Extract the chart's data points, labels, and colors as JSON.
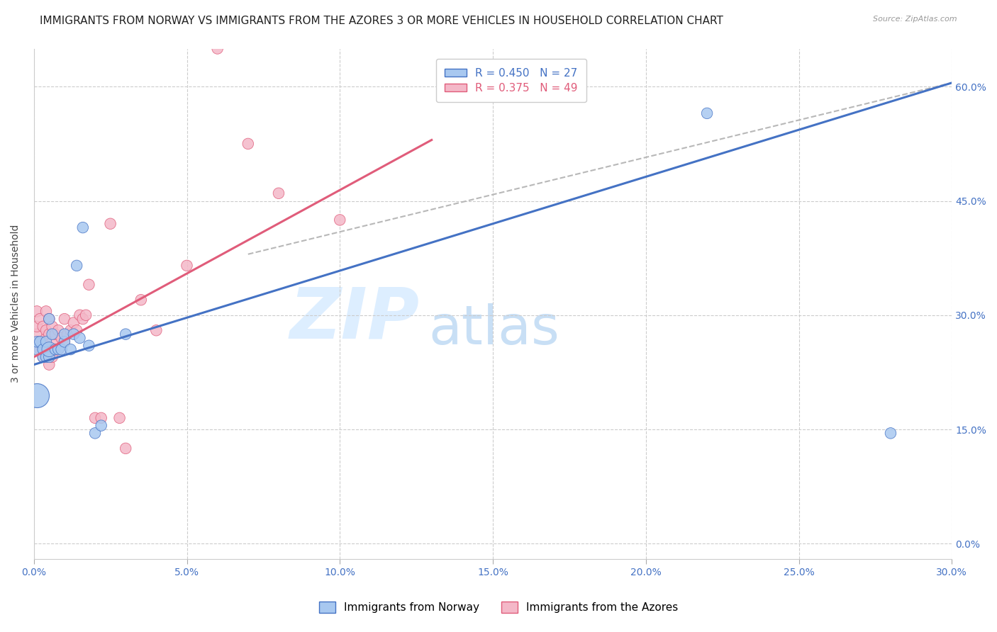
{
  "title": "IMMIGRANTS FROM NORWAY VS IMMIGRANTS FROM THE AZORES 3 OR MORE VEHICLES IN HOUSEHOLD CORRELATION CHART",
  "source": "Source: ZipAtlas.com",
  "ylabel_left": "3 or more Vehicles in Household",
  "legend_norway": "Immigrants from Norway",
  "legend_azores": "Immigrants from the Azores",
  "R_norway": 0.45,
  "N_norway": 27,
  "R_azores": 0.375,
  "N_azores": 49,
  "xlim": [
    0.0,
    0.3
  ],
  "ylim": [
    -0.02,
    0.65
  ],
  "yticks": [
    0.0,
    0.15,
    0.3,
    0.45,
    0.6
  ],
  "xticks": [
    0.0,
    0.05,
    0.1,
    0.15,
    0.2,
    0.25,
    0.3
  ],
  "color_norway": "#a8c8f0",
  "color_norway_line": "#4472C4",
  "color_azores": "#f4b8c8",
  "color_azores_line": "#E05C7A",
  "color_diag": "#b8b8b8",
  "norway_x": [
    0.001,
    0.001,
    0.002,
    0.003,
    0.003,
    0.004,
    0.004,
    0.005,
    0.005,
    0.005,
    0.006,
    0.007,
    0.008,
    0.009,
    0.01,
    0.01,
    0.012,
    0.013,
    0.014,
    0.015,
    0.016,
    0.018,
    0.02,
    0.022,
    0.03,
    0.22,
    0.28
  ],
  "norway_y": [
    0.255,
    0.265,
    0.265,
    0.245,
    0.255,
    0.245,
    0.265,
    0.245,
    0.255,
    0.295,
    0.275,
    0.255,
    0.255,
    0.255,
    0.265,
    0.275,
    0.255,
    0.275,
    0.365,
    0.27,
    0.415,
    0.26,
    0.145,
    0.155,
    0.275,
    0.565,
    0.145
  ],
  "norway_size": [
    50,
    50,
    50,
    50,
    50,
    50,
    50,
    50,
    90,
    50,
    50,
    50,
    50,
    50,
    50,
    50,
    50,
    50,
    50,
    50,
    50,
    50,
    50,
    50,
    50,
    50,
    50
  ],
  "norway_large": [
    false,
    false,
    false,
    false,
    false,
    false,
    false,
    false,
    false,
    false,
    false,
    false,
    false,
    false,
    false,
    false,
    false,
    false,
    false,
    false,
    false,
    false,
    false,
    false,
    false,
    false,
    false
  ],
  "azores_x": [
    0.001,
    0.001,
    0.001,
    0.002,
    0.002,
    0.002,
    0.003,
    0.003,
    0.003,
    0.003,
    0.004,
    0.004,
    0.004,
    0.004,
    0.004,
    0.005,
    0.005,
    0.005,
    0.005,
    0.006,
    0.006,
    0.006,
    0.007,
    0.007,
    0.008,
    0.008,
    0.009,
    0.01,
    0.01,
    0.011,
    0.012,
    0.013,
    0.014,
    0.015,
    0.016,
    0.017,
    0.018,
    0.02,
    0.022,
    0.025,
    0.028,
    0.03,
    0.035,
    0.04,
    0.05,
    0.06,
    0.07,
    0.08,
    0.1
  ],
  "azores_y": [
    0.275,
    0.285,
    0.305,
    0.255,
    0.265,
    0.295,
    0.245,
    0.255,
    0.265,
    0.285,
    0.245,
    0.255,
    0.27,
    0.28,
    0.305,
    0.235,
    0.255,
    0.275,
    0.295,
    0.245,
    0.265,
    0.285,
    0.255,
    0.275,
    0.255,
    0.28,
    0.27,
    0.265,
    0.295,
    0.275,
    0.28,
    0.29,
    0.28,
    0.3,
    0.295,
    0.3,
    0.34,
    0.165,
    0.165,
    0.42,
    0.165,
    0.125,
    0.32,
    0.28,
    0.365,
    0.65,
    0.525,
    0.46,
    0.425
  ],
  "azores_size": [
    50,
    50,
    50,
    50,
    50,
    50,
    50,
    50,
    50,
    50,
    50,
    50,
    50,
    50,
    50,
    50,
    50,
    50,
    50,
    50,
    50,
    50,
    50,
    50,
    50,
    50,
    50,
    50,
    50,
    50,
    50,
    50,
    50,
    50,
    50,
    50,
    50,
    50,
    50,
    50,
    50,
    50,
    50,
    50,
    50,
    50,
    50,
    50,
    50
  ],
  "norway_line_x": [
    0.0,
    0.3
  ],
  "norway_line_y": [
    0.235,
    0.605
  ],
  "azores_line_x": [
    0.0,
    0.13
  ],
  "azores_line_y": [
    0.245,
    0.53
  ],
  "diag_line_x": [
    0.07,
    0.3
  ],
  "diag_line_y": [
    0.38,
    0.605
  ],
  "watermark_zip": "ZIP",
  "watermark_atlas": "atlas",
  "watermark_color_zip": "#ddeeff",
  "watermark_color_atlas": "#c8dff5",
  "background_color": "#ffffff",
  "grid_color": "#cccccc",
  "tick_color": "#4472C4",
  "title_fontsize": 11,
  "axis_label_fontsize": 10,
  "tick_fontsize": 10,
  "legend_fontsize": 11
}
